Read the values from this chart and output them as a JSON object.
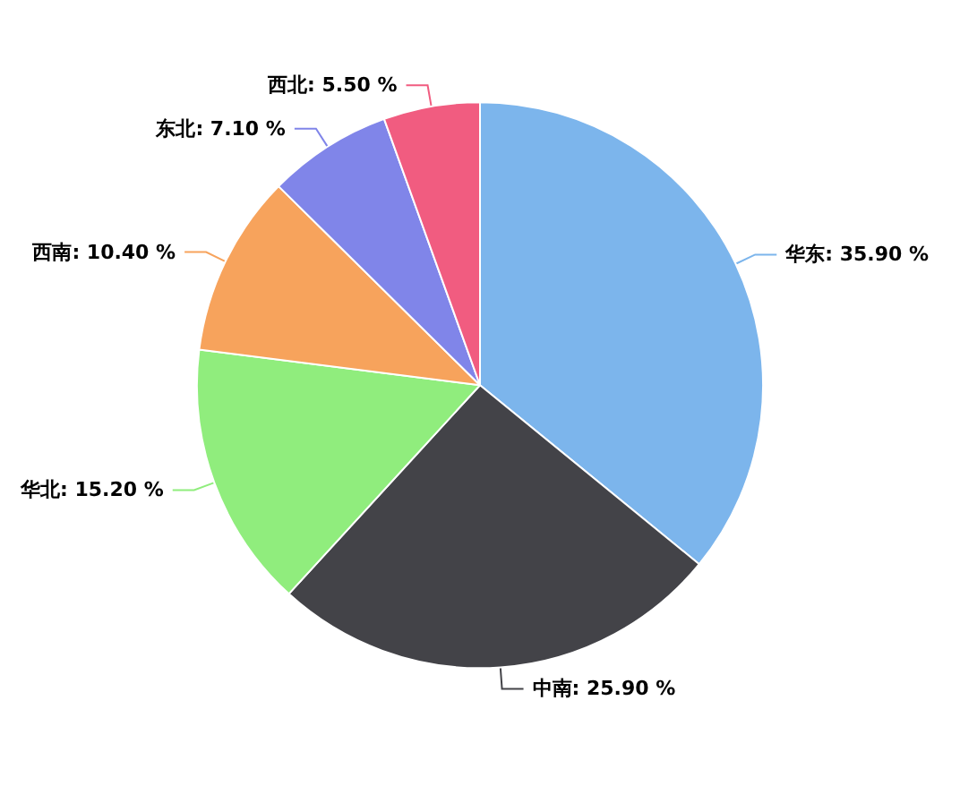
{
  "chart_data": {
    "type": "pie",
    "categories": [
      "华东",
      "中南",
      "华北",
      "西南",
      "东北",
      "西北"
    ],
    "values": [
      35.9,
      25.9,
      15.2,
      10.4,
      7.1,
      5.5
    ],
    "colors": [
      "#7cb5ec",
      "#434348",
      "#90ed7d",
      "#f7a35c",
      "#8085e9",
      "#f15c80"
    ],
    "value_labels": [
      "35.90 %",
      "25.90 %",
      "15.20 %",
      "10.40 %",
      "7.10 %",
      "5.50 %"
    ],
    "legend": false
  }
}
